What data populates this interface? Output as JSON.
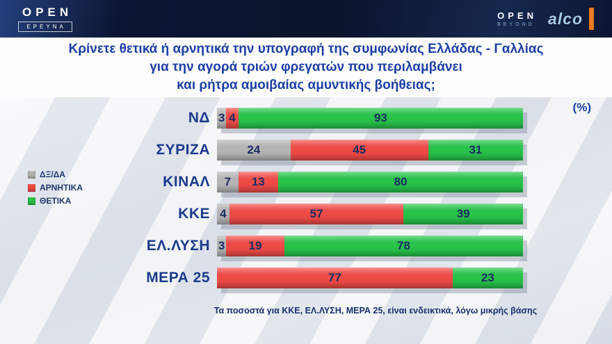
{
  "header": {
    "open_logo": "OPEN",
    "open_sub": "ΕΡΕΥΝΑ",
    "right_open": "OPEN",
    "right_beyond": "BEYOND",
    "alco": "alco"
  },
  "title": {
    "lines": [
      "Κρίνετε θετικά ή αρνητικά την υπογραφή της συμφωνίας Ελλάδας - Γαλλίας",
      "για την αγορά τριών φρεγατών που περιλαμβάνει",
      "και ρήτρα αμοιβαίας αμυντικής βοήθειας;"
    ]
  },
  "chart_data": {
    "type": "bar",
    "orientation": "horizontal",
    "stacked": true,
    "unit_label": "(%)",
    "categories": [
      "ΝΔ",
      "ΣΥΡΙΖΑ",
      "ΚΙΝΑΛ",
      "ΚΚΕ",
      "ΕΛ.ΛΥΣΗ",
      "ΜΕΡΑ 25"
    ],
    "series": [
      {
        "name": "ΔΞ/ΔΑ",
        "color": "#b4b4b4",
        "values": [
          3,
          24,
          7,
          4,
          3,
          0
        ]
      },
      {
        "name": "ΑΡΝΗΤΙΚΑ",
        "color": "#ee4b47",
        "values": [
          4,
          45,
          13,
          57,
          19,
          77
        ]
      },
      {
        "name": "ΘΕΤΙΚΑ",
        "color": "#28c24a",
        "values": [
          93,
          31,
          80,
          39,
          78,
          23
        ]
      }
    ],
    "xlim": [
      0,
      100
    ],
    "legend_position": "left",
    "footnote": "Τα ποσοστά για ΚΚΕ, ΕΛ.ΛΥΣΗ, ΜΕΡΑ 25, είναι ενδεικτικά, λόγω μικρής βάσης"
  }
}
